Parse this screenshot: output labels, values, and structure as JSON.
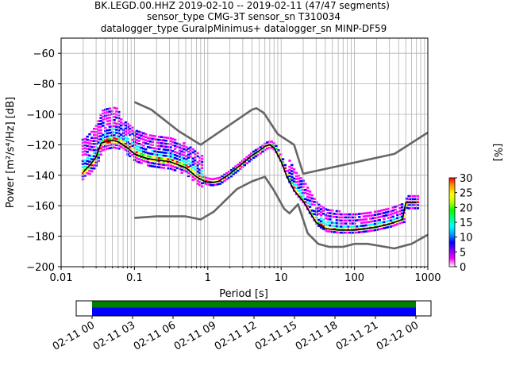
{
  "chart_data": [
    {
      "type": "heatmap",
      "title": [
        "BK.LEGD.00.HHZ   2019-02-10 -- 2019-02-11  (47/47 segments)",
        "sensor_type CMG-3T sensor_sn T310034",
        "datalogger_type GuralpMinimus+ datalogger_sn MINP-DF59"
      ],
      "xlabel": "Period [s]",
      "ylabel": "Power [m²/s⁴/Hz] [dB]",
      "x_scale": "log",
      "xlim": [
        0.01,
        1000
      ],
      "ylim": [
        -200,
        -50
      ],
      "xtick_labels": [
        "0.01",
        "0.1",
        "1",
        "10",
        "100",
        "1000"
      ],
      "ytick_values": [
        -200,
        -180,
        -160,
        -140,
        -120,
        -100,
        -80,
        -60
      ],
      "ytick_labels": [
        "−200",
        "−180",
        "−160",
        "−140",
        "−120",
        "−100",
        "−80",
        "−60"
      ],
      "grid": true,
      "colorbar": {
        "label": "[%]",
        "range": [
          0,
          30
        ],
        "tick_labels": [
          "0",
          "5",
          "10",
          "15",
          "20",
          "25",
          "30"
        ],
        "colors": [
          "#ffffff",
          "#ff00ff",
          "#0000ff",
          "#00ffff",
          "#00ff00",
          "#ffff00",
          "#ff0000"
        ]
      },
      "series": [
        {
          "name": "mean",
          "color": "#000000",
          "points": [
            [
              0.02,
              -138
            ],
            [
              0.025,
              -133
            ],
            [
              0.03,
              -128
            ],
            [
              0.035,
              -119
            ],
            [
              0.04,
              -118
            ],
            [
              0.05,
              -117
            ],
            [
              0.06,
              -118
            ],
            [
              0.08,
              -122
            ],
            [
              0.1,
              -126
            ],
            [
              0.15,
              -129
            ],
            [
              0.2,
              -130
            ],
            [
              0.3,
              -131
            ],
            [
              0.5,
              -135
            ],
            [
              0.7,
              -141
            ],
            [
              0.9,
              -144
            ],
            [
              1.1,
              -145
            ],
            [
              1.4,
              -144
            ],
            [
              2,
              -139
            ],
            [
              3,
              -132
            ],
            [
              4,
              -127
            ],
            [
              5,
              -124
            ],
            [
              6,
              -121
            ],
            [
              7,
              -120
            ],
            [
              8,
              -122
            ],
            [
              10,
              -131
            ],
            [
              12,
              -141
            ],
            [
              15,
              -150
            ],
            [
              20,
              -157
            ],
            [
              25,
              -165
            ],
            [
              30,
              -171
            ],
            [
              40,
              -175
            ],
            [
              60,
              -176
            ],
            [
              100,
              -176
            ],
            [
              150,
              -175
            ],
            [
              200,
              -174
            ],
            [
              300,
              -172
            ],
            [
              450,
              -169
            ],
            [
              500,
              -158
            ],
            [
              700,
              -158
            ]
          ]
        }
      ],
      "reference_curves": [
        {
          "color": "#666666",
          "points": [
            [
              0.1,
              -92
            ],
            [
              0.17,
              -97
            ],
            [
              0.4,
              -111
            ],
            [
              0.8,
              -120
            ],
            [
              4,
              -97
            ],
            [
              4.6,
              -96
            ],
            [
              5.8,
              -99
            ],
            [
              9,
              -113
            ],
            [
              15,
              -120
            ],
            [
              20,
              -139
            ],
            [
              350,
              -126
            ],
            [
              1000,
              -112
            ]
          ]
        },
        {
          "color": "#666666",
          "points": [
            [
              0.1,
              -168
            ],
            [
              0.2,
              -167
            ],
            [
              0.5,
              -167
            ],
            [
              0.8,
              -169
            ],
            [
              1.2,
              -164
            ],
            [
              2.5,
              -149
            ],
            [
              4,
              -144
            ],
            [
              6,
              -141
            ],
            [
              8,
              -150
            ],
            [
              11,
              -162
            ],
            [
              13,
              -165
            ],
            [
              17,
              -159
            ],
            [
              23,
              -178
            ],
            [
              32,
              -185
            ],
            [
              45,
              -187
            ],
            [
              70,
              -187
            ],
            [
              100,
              -185
            ],
            [
              150,
              -185
            ],
            [
              200,
              -186
            ],
            [
              350,
              -188
            ],
            [
              600,
              -185
            ],
            [
              1000,
              -179
            ]
          ]
        }
      ]
    },
    {
      "type": "timeline",
      "tick_labels": [
        "02-11 00",
        "02-11 03",
        "02-11 06",
        "02-11 09",
        "02-11 12",
        "02-11 15",
        "02-11 18",
        "02-11 21",
        "02-12 00"
      ],
      "bars": [
        {
          "color": "#008000"
        },
        {
          "color": "#0000ff"
        }
      ]
    }
  ]
}
